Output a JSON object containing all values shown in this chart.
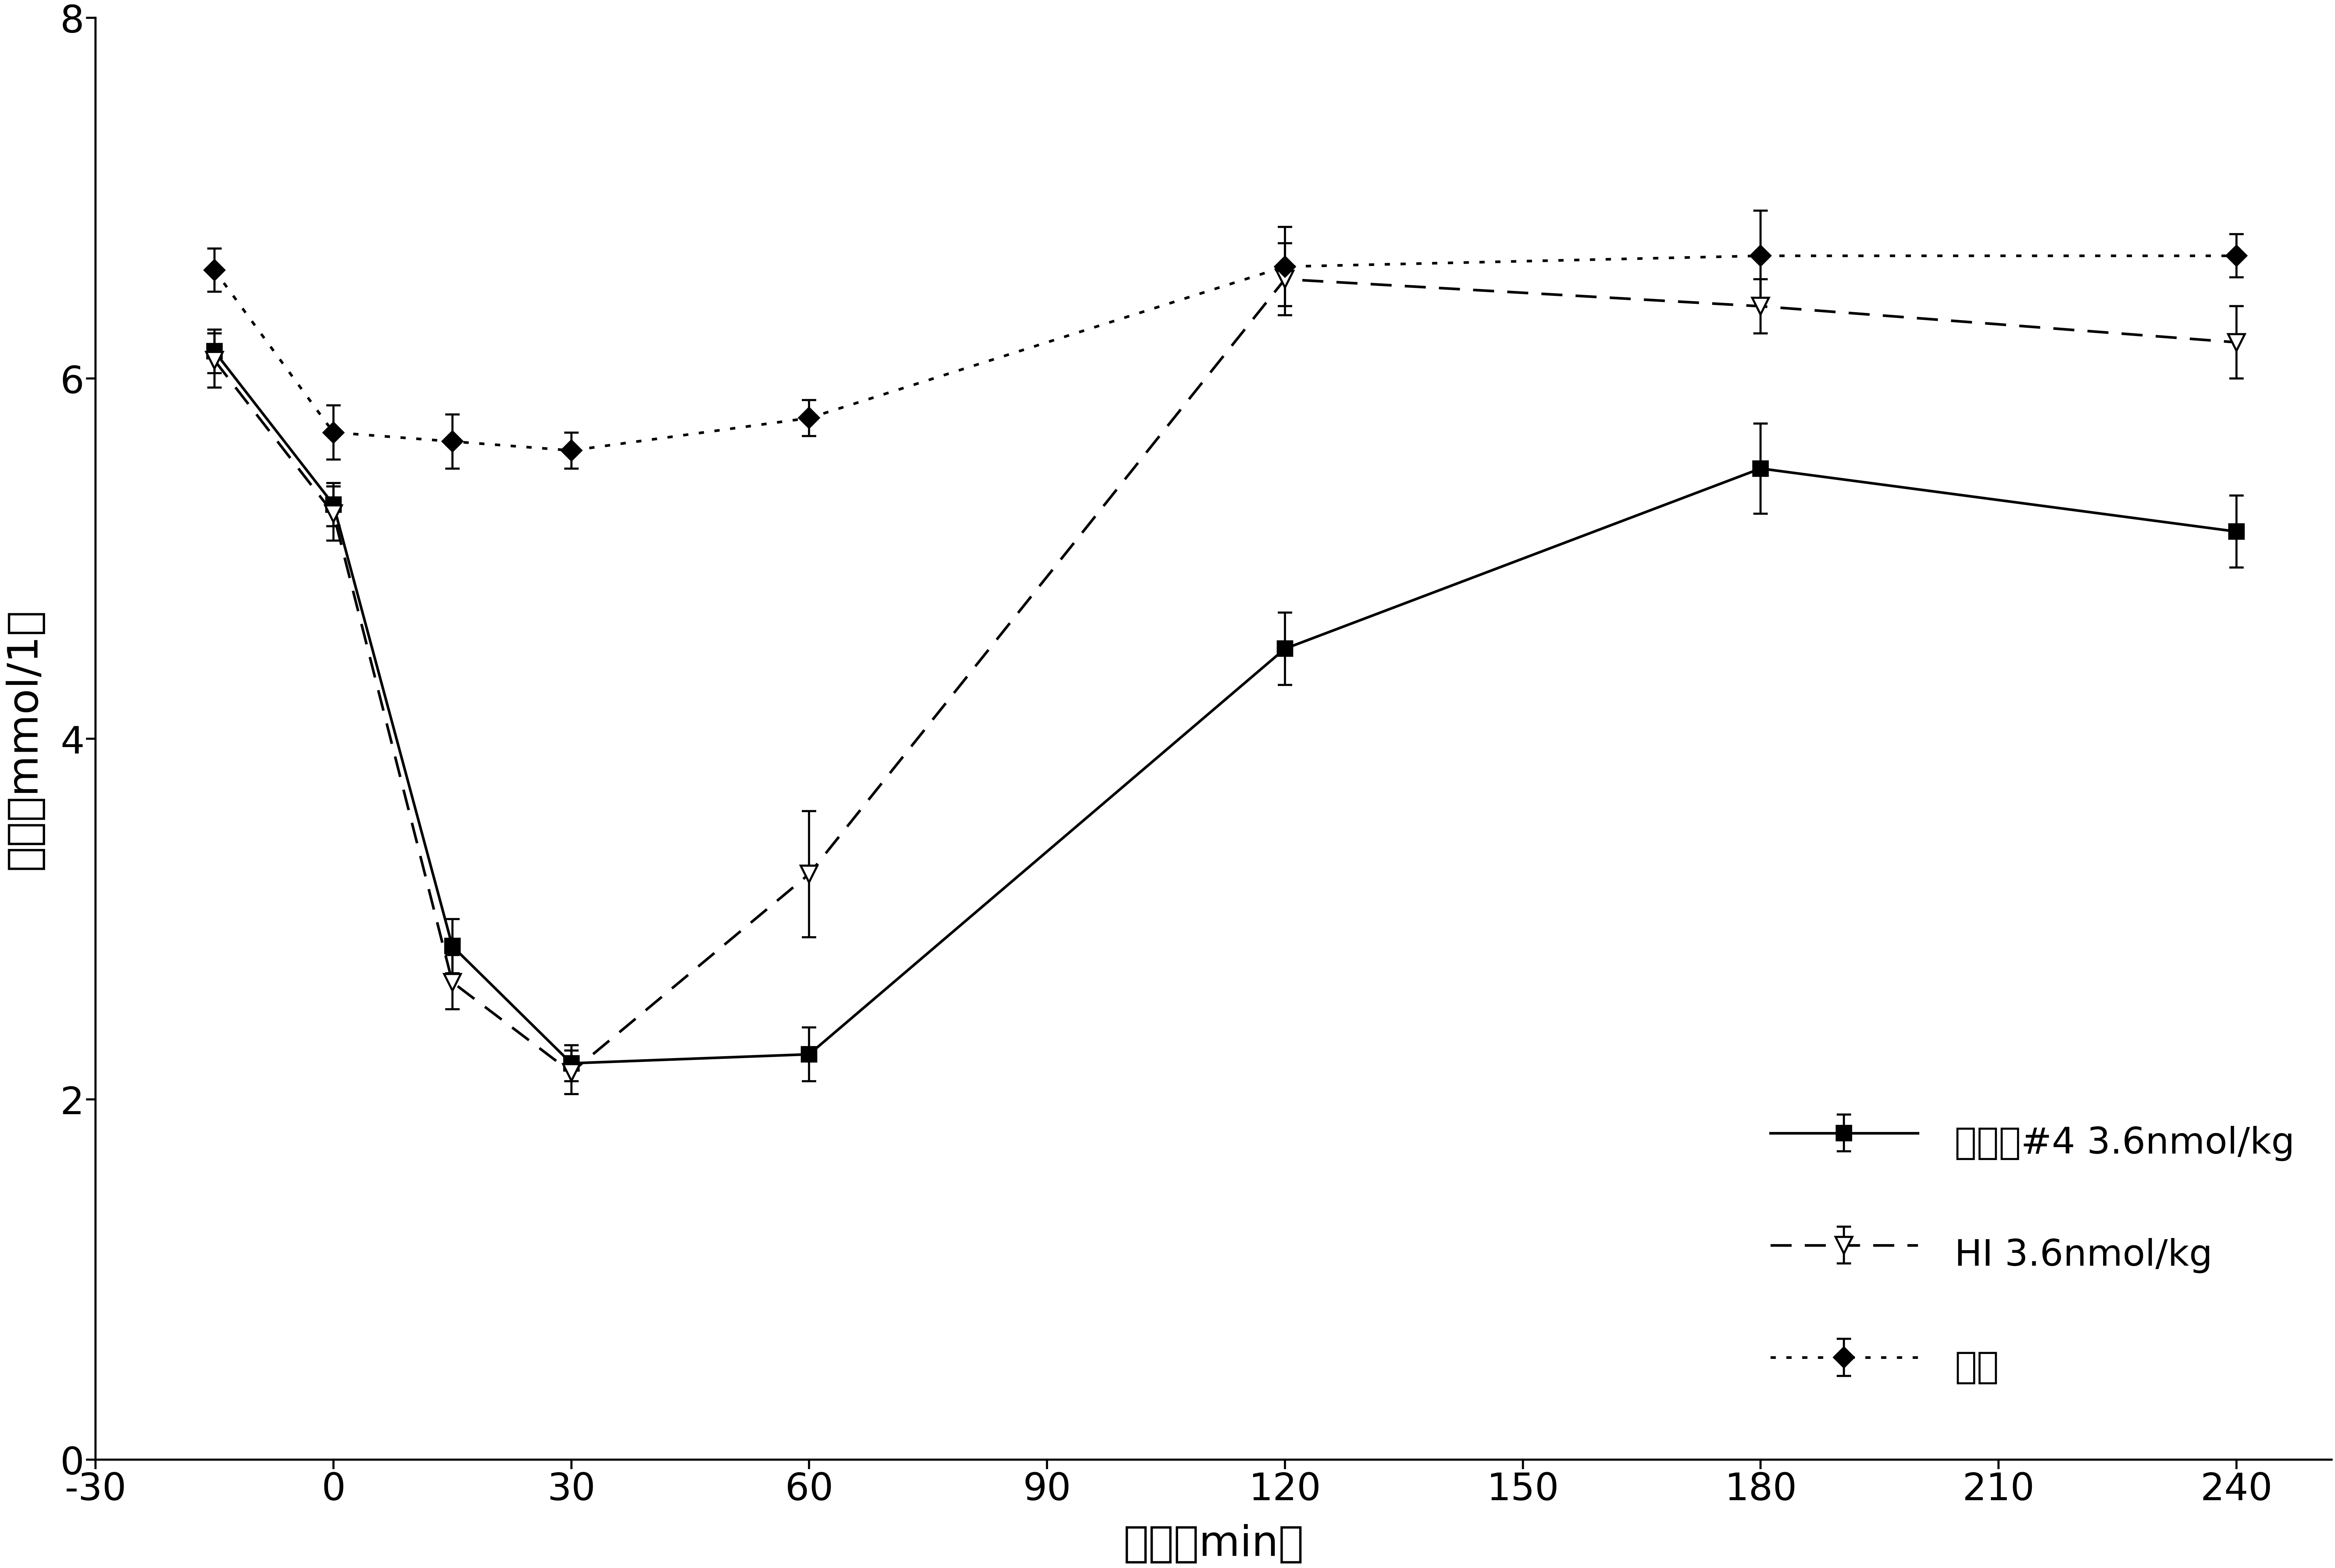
{
  "series": [
    {
      "label": "实施例#4 3.6nmol/kg",
      "x": [
        -15,
        0,
        15,
        30,
        60,
        120,
        180,
        240
      ],
      "y": [
        6.15,
        5.3,
        2.85,
        2.2,
        2.25,
        4.5,
        5.5,
        5.15
      ],
      "yerr": [
        0.12,
        0.12,
        0.15,
        0.1,
        0.15,
        0.2,
        0.25,
        0.2
      ],
      "linestyle": "solid",
      "marker": "s",
      "markersize": 28,
      "markerfacecolor": "black",
      "markeredgecolor": "black",
      "linewidth": 5,
      "color": "black"
    },
    {
      "label": "HI 3.6nmol/kg",
      "x": [
        -15,
        0,
        15,
        30,
        60,
        120,
        180,
        240
      ],
      "y": [
        6.1,
        5.25,
        2.65,
        2.15,
        3.25,
        6.55,
        6.4,
        6.2
      ],
      "yerr": [
        0.15,
        0.15,
        0.15,
        0.12,
        0.35,
        0.2,
        0.15,
        0.2
      ],
      "linestyle": "dashed",
      "marker": "v",
      "markersize": 32,
      "markerfacecolor": "white",
      "markeredgecolor": "black",
      "linewidth": 5,
      "color": "black"
    },
    {
      "label": "媒介",
      "x": [
        -15,
        0,
        15,
        30,
        60,
        120,
        180,
        240
      ],
      "y": [
        6.6,
        5.7,
        5.65,
        5.6,
        5.78,
        6.62,
        6.68,
        6.68
      ],
      "yerr": [
        0.12,
        0.15,
        0.15,
        0.1,
        0.1,
        0.22,
        0.25,
        0.12
      ],
      "linestyle": "dotted",
      "marker": "D",
      "markersize": 26,
      "markerfacecolor": "black",
      "markeredgecolor": "black",
      "linewidth": 5,
      "color": "black"
    }
  ],
  "xlabel": "时间（min）",
  "ylabel": "血糖（mmol/1）",
  "xlim": [
    -27,
    252
  ],
  "ylim": [
    0,
    8
  ],
  "xticks": [
    -30,
    0,
    30,
    60,
    90,
    120,
    150,
    180,
    210,
    240
  ],
  "xticklabels": [
    "-30",
    "0",
    "30",
    "60",
    "90",
    "120",
    "150",
    "180",
    "210",
    "240"
  ],
  "yticks": [
    0,
    2,
    4,
    6,
    8
  ],
  "background_color": "#ffffff",
  "fontsize_labels": 80,
  "fontsize_ticks": 72,
  "fontsize_legend": 70,
  "capsize": 14,
  "elinewidth": 4,
  "markeredgewidth": 4
}
